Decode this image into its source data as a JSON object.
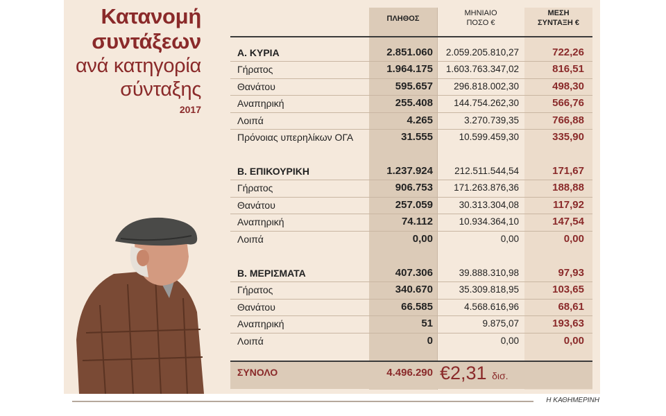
{
  "title": {
    "line1": "Κατανομή",
    "line2": "συντάξεων",
    "line3": "ανά κατηγορία",
    "line4": "σύνταξης",
    "year": "2017"
  },
  "headers": {
    "count": "ΠΛΗΘΟΣ",
    "amount_line1": "ΜΗΝΙΑΙΟ",
    "amount_line2": "ΠΟΣΟ €",
    "avg_line1": "ΜΕΣΗ",
    "avg_line2": "ΣΥΝΤΑΞΗ €"
  },
  "sections": [
    {
      "rows": [
        {
          "label": "Α. ΚΥΡΙΑ",
          "count": "2.851.060",
          "amount": "2.059.205.810,27",
          "avg": "722,26",
          "category": true
        },
        {
          "label": "Γήρατος",
          "count": "1.964.175",
          "amount": "1.603.763.347,02",
          "avg": "816,51"
        },
        {
          "label": "Θανάτου",
          "count": "595.657",
          "amount": "296.818.002,30",
          "avg": "498,30"
        },
        {
          "label": "Αναπηρική",
          "count": "255.408",
          "amount": "144.754.262,30",
          "avg": "566,76"
        },
        {
          "label": "Λοιπά",
          "count": "4.265",
          "amount": "3.270.739,35",
          "avg": "766,88"
        },
        {
          "label": "Πρόνοιας υπερηλίκων ΟΓΑ",
          "count": "31.555",
          "amount": "10.599.459,30",
          "avg": "335,90"
        }
      ]
    },
    {
      "rows": [
        {
          "label": "Β. ΕΠΙΚΟΥΡΙΚΗ",
          "count": "1.237.924",
          "amount": "212.511.544,54",
          "avg": "171,67",
          "category": true
        },
        {
          "label": "Γήρατος",
          "count": "906.753",
          "amount": "171.263.876,36",
          "avg": "188,88"
        },
        {
          "label": "Θανάτου",
          "count": "257.059",
          "amount": "30.313.304,08",
          "avg": "117,92"
        },
        {
          "label": "Αναπηρική",
          "count": "74.112",
          "amount": "10.934.364,10",
          "avg": "147,54"
        },
        {
          "label": "Λοιπά",
          "count": "0,00",
          "amount": "0,00",
          "avg": "0,00"
        }
      ]
    },
    {
      "rows": [
        {
          "label": "Β. ΜΕΡΙΣΜΑΤΑ",
          "count": "407.306",
          "amount": "39.888.310,98",
          "avg": "97,93",
          "category": true
        },
        {
          "label": "Γήρατος",
          "count": "340.670",
          "amount": "35.309.818,95",
          "avg": "103,65"
        },
        {
          "label": "Θανάτου",
          "count": "66.585",
          "amount": "4.568.616,96",
          "avg": "68,61"
        },
        {
          "label": "Αναπηρική",
          "count": "51",
          "amount": "9.875,07",
          "avg": "193,63"
        },
        {
          "label": "Λοιπά",
          "count": "0",
          "amount": "0,00",
          "avg": "0,00"
        }
      ]
    }
  ],
  "total": {
    "label": "ΣΥΝΟΛΟ",
    "count": "4.496.290",
    "amount": "€2,31",
    "unit": "δισ."
  },
  "source": "Η ΚΑΘΗΜΕΡΙΝΗ",
  "colors": {
    "accent": "#8a2a2a",
    "panel": "#f5e9dc",
    "column": "#dccbb8"
  },
  "illustration": "elderly-man-with-flat-cap"
}
